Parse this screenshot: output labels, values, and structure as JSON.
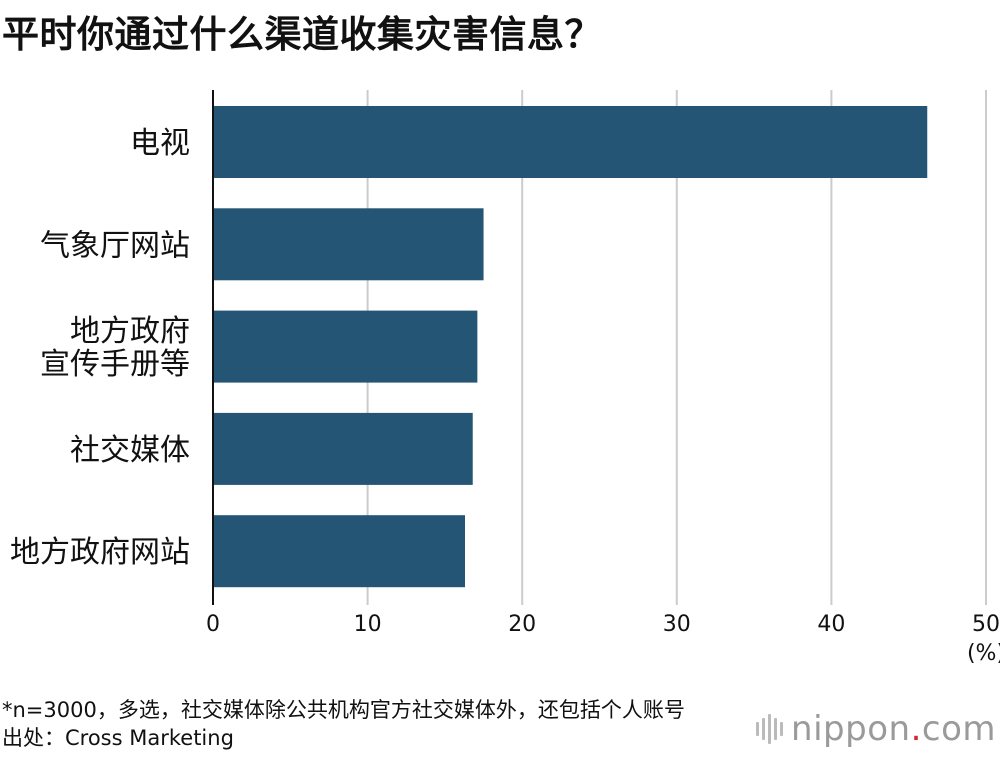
{
  "title": "平时你通过什么渠道收集灾害信息？",
  "chart_data": {
    "type": "bar",
    "orientation": "horizontal",
    "categories": [
      [
        "电视"
      ],
      [
        "气象厅网站"
      ],
      [
        "地方政府",
        "宣传手册等"
      ],
      [
        "社交媒体"
      ],
      [
        "地方政府网站"
      ]
    ],
    "values": [
      46.2,
      17.5,
      17.1,
      16.8,
      16.3
    ],
    "xlim": [
      0,
      50
    ],
    "xticks": [
      "0",
      "10",
      "20",
      "30",
      "40",
      "50"
    ],
    "xunit": "(%)",
    "grid": true,
    "bar_color": "#245574",
    "grid_color": "#cccccc"
  },
  "footnote": {
    "line1": "*n=3000，多选，社交媒体除公共机构官方社交媒体外，还包括个人账号",
    "line2": "出处：Cross Marketing"
  },
  "brand": {
    "text_main": "nippon",
    "text_dot": ".",
    "text_tail": "com",
    "icon": "nippon-bars-icon"
  }
}
